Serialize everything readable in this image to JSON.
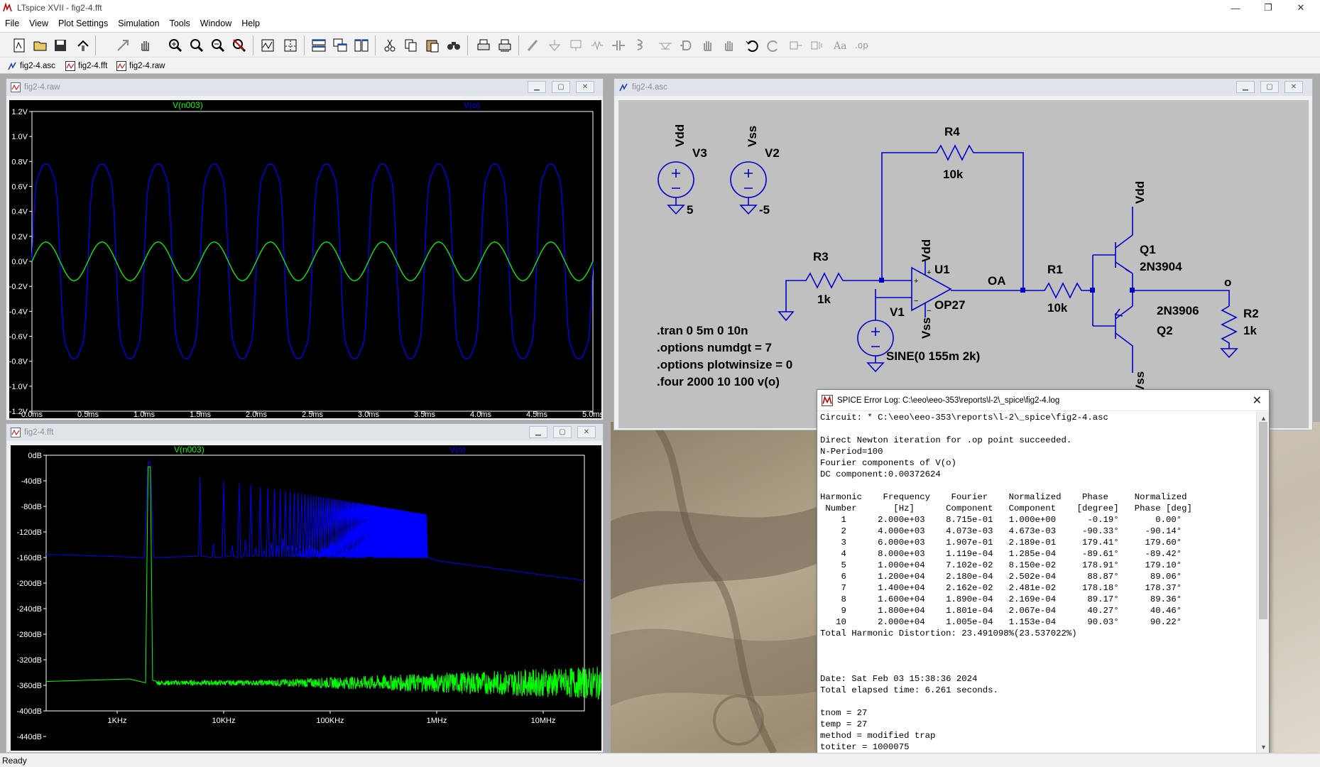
{
  "app": {
    "title": "LTspice XVII - fig2-4.fft",
    "window_controls": {
      "minimize": "—",
      "restore": "❐",
      "close": "✕"
    }
  },
  "menu": [
    "File",
    "View",
    "Plot Settings",
    "Simulation",
    "Tools",
    "Window",
    "Help"
  ],
  "toolbar_icons": [
    "new-schematic-icon",
    "open-icon",
    "save-icon",
    "control-panel-icon",
    "run-icon",
    "halt-icon",
    "zoom-in-icon",
    "zoom-full-icon",
    "zoom-out-icon",
    "zoom-cancel-icon",
    "autorange-icon",
    "pick-traces-icon",
    "tile-horizontal-icon",
    "cascade-icon",
    "tile-vertical-icon",
    "cut-icon",
    "copy-icon",
    "paste-icon",
    "find-icon",
    "print-icon",
    "print-setup-icon",
    "wire-icon",
    "ground-icon",
    "label-icon",
    "resistor-icon",
    "capacitor-icon",
    "inductor-icon",
    "diode-icon",
    "component-icon",
    "move-icon",
    "drag-icon",
    "undo-icon",
    "redo-icon",
    "rotate-icon",
    "mirror-icon",
    "text-icon",
    "spice-directive-icon"
  ],
  "doc_tabs": [
    {
      "label": "fig2-4.asc",
      "icon": "schematic-icon"
    },
    {
      "label": "fig2-4.fft",
      "icon": "waveform-icon"
    },
    {
      "label": "fig2-4.raw",
      "icon": "waveform-icon"
    }
  ],
  "colors": {
    "trace_green": "#00ff00",
    "trace_blue": "#0000ff",
    "wire_blue": "#0000c8",
    "plot_bg": "#000000",
    "schematic_bg": "#c0c0c0"
  },
  "raw_window": {
    "title": "fig2-4.raw",
    "trace_labels": [
      "V(n003)",
      "V(o)"
    ],
    "yticks": [
      "1.2V",
      "1.0V",
      "0.8V",
      "0.6V",
      "0.4V",
      "0.2V",
      "0.0V",
      "-0.2V",
      "-0.4V",
      "-0.6V",
      "-0.8V",
      "-1.0V",
      "-1.2V"
    ],
    "xticks": [
      "0.0ms",
      "0.5ms",
      "1.0ms",
      "1.5ms",
      "2.0ms",
      "2.5ms",
      "3.0ms",
      "3.5ms",
      "4.0ms",
      "4.5ms",
      "5.0ms"
    ]
  },
  "fft_window": {
    "title": "fig2-4.fft",
    "trace_labels": [
      "V(n003)",
      "V(o)"
    ],
    "yticks": [
      "0dB",
      "-40dB",
      "-80dB",
      "-120dB",
      "-160dB",
      "-200dB",
      "-240dB",
      "-280dB",
      "-320dB",
      "-360dB",
      "-400dB",
      "-440dB"
    ],
    "xticks": [
      "1KHz",
      "10KHz",
      "100KHz",
      "1MHz",
      "10MHz"
    ]
  },
  "schematic_window": {
    "title": "fig2-4.asc",
    "labels": {
      "v3_node": "Vdd",
      "v3_name": "V3",
      "v3_value": "5",
      "v2_node": "Vss",
      "v2_name": "V2",
      "v2_value": "-5",
      "r4_name": "R4",
      "r4_value": "10k",
      "r3_name": "R3",
      "r3_value": "1k",
      "u1_name": "U1",
      "u1_model": "OP27",
      "u1_vdd": "Vdd",
      "u1_vss": "Vss",
      "oa_label": "OA",
      "r1_name": "R1",
      "r1_value": "10k",
      "q1_name": "Q1",
      "q1_model": "2N3904",
      "q1_vdd": "Vdd",
      "q2_name": "Q2",
      "q2_model": "2N3906",
      "q2_vss": "Vss",
      "o_label": "o",
      "r2_name": "R2",
      "r2_value": "1k",
      "v1_name": "V1",
      "v1_value": "SINE(0 155m 2k)"
    },
    "directives": [
      ".tran 0 5m 0 10n",
      ".options numdgt = 7",
      ".options plotwinsize = 0",
      ".four 2000 10 100 v(o)"
    ]
  },
  "log_window": {
    "title": "SPICE Error Log: C:\\eeo\\eeo-353\\reports\\l-2\\_spice\\fig2-4.log",
    "lines": [
      "Circuit: * C:\\eeo\\eeo-353\\reports\\l-2\\_spice\\fig2-4.asc",
      "",
      "Direct Newton iteration for .op point succeeded.",
      "N-Period=100",
      "Fourier components of V(o)",
      "DC component:0.00372624",
      "",
      "Harmonic    Frequency    Fourier    Normalized    Phase     Normalized",
      " Number       [Hz]      Component   Component    [degree]   Phase [deg]",
      "    1      2.000e+03    8.715e-01   1.000e+00      -0.19°       0.00°",
      "    2      4.000e+03    4.073e-03   4.673e-03     -90.33°     -90.14°",
      "    3      6.000e+03    1.907e-01   2.189e-01     179.41°     179.60°",
      "    4      8.000e+03    1.119e-04   1.285e-04     -89.61°     -89.42°",
      "    5      1.000e+04    7.102e-02   8.150e-02     178.91°     179.10°",
      "    6      1.200e+04    2.180e-04   2.502e-04      88.87°      89.06°",
      "    7      1.400e+04    2.162e-02   2.481e-02     178.18°     178.37°",
      "    8      1.600e+04    1.890e-04   2.169e-04      89.17°      89.36°",
      "    9      1.800e+04    1.801e-04   2.067e-04      40.27°      40.46°",
      "   10      2.000e+04    1.005e-04   1.153e-04      90.03°      90.22°",
      "Total Harmonic Distortion: 23.491098%(23.537022%)",
      "",
      "",
      "",
      "Date: Sat Feb 03 15:38:36 2024",
      "Total elapsed time: 6.261 seconds.",
      "",
      "tnom = 27",
      "temp = 27",
      "method = modified trap",
      "totiter = 1000075"
    ]
  },
  "status": {
    "text": "Ready"
  }
}
